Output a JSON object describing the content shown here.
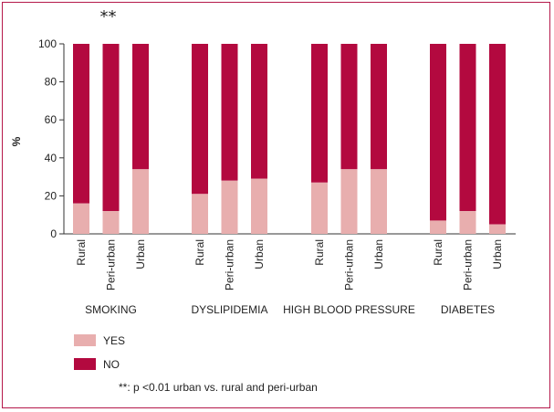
{
  "chart_data": {
    "type": "bar",
    "stacked": true,
    "ylabel": "%",
    "ylim": [
      0,
      100
    ],
    "yticks": [
      0,
      20,
      40,
      60,
      80,
      100
    ],
    "grid": false,
    "groups": [
      {
        "name": "SMOKING",
        "categories": [
          "Rural",
          "Peri-urban",
          "Urban"
        ],
        "yes": [
          16,
          12,
          34
        ],
        "annotation": "**"
      },
      {
        "name": "DYSLIPIDEMIA",
        "categories": [
          "Rural",
          "Peri-urban",
          "Urban"
        ],
        "yes": [
          21,
          28,
          29
        ]
      },
      {
        "name": "HIGH BLOOD PRESSURE",
        "categories": [
          "Rural",
          "Peri-urban",
          "Urban"
        ],
        "yes": [
          27,
          34,
          34
        ]
      },
      {
        "name": "DIABETES",
        "categories": [
          "Rural",
          "Peri-urban",
          "Urban"
        ],
        "yes": [
          7,
          12,
          5
        ]
      }
    ],
    "series": [
      {
        "name": "YES",
        "color": "#e8aeae"
      },
      {
        "name": "NO",
        "color": "#b3093f"
      }
    ],
    "legend_position": "bottom-left",
    "footnote": "**: p <0.01 urban vs. rural and peri-urban"
  }
}
